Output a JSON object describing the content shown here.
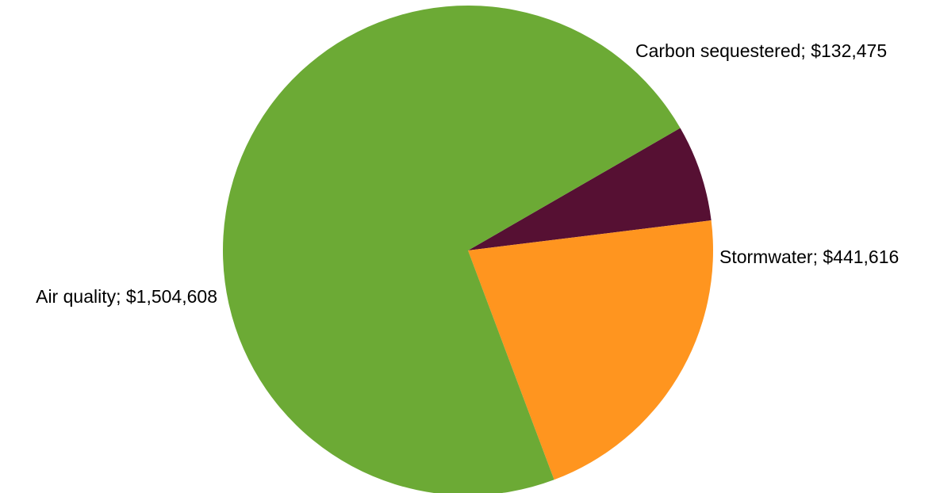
{
  "chart_data": {
    "type": "pie",
    "title": "",
    "slices": [
      {
        "label": "Carbon sequestered",
        "value_text": "$132,475",
        "value": 132475,
        "color": "#561033"
      },
      {
        "label": "Stormwater",
        "value_text": "$441,616",
        "value": 441616,
        "color": "#ff951f"
      },
      {
        "label": "Air quality",
        "value_text": "$1,504,608",
        "value": 1504608,
        "color": "#6caa35"
      }
    ],
    "legend": "none",
    "data_labels": "outside, format \"name; value\""
  }
}
